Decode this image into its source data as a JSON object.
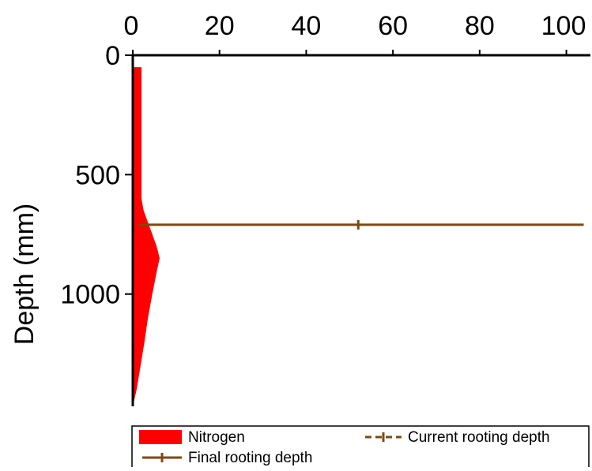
{
  "chart_data": {
    "type": "area",
    "xlabel": "",
    "ylabel": "Depth (mm)",
    "xlim": [
      0,
      105
    ],
    "ylim": [
      0,
      1470
    ],
    "x_axis_position": "top",
    "y_inverted": true,
    "grid": false,
    "x_ticks": [
      0,
      20,
      40,
      60,
      80,
      100
    ],
    "x_tick_labels": [
      "0",
      "20",
      "40",
      "60",
      "80",
      "100"
    ],
    "y_ticks": [
      0,
      500,
      1000
    ],
    "y_tick_labels": [
      "0",
      "500",
      "1000"
    ],
    "series": [
      {
        "name": "Nitrogen",
        "kind": "area",
        "color": "#ff0000",
        "depth": [
          50,
          100,
          200,
          300,
          400,
          500,
          600,
          650,
          700,
          750,
          800,
          850,
          900,
          1000,
          1100,
          1200,
          1300,
          1400,
          1470
        ],
        "value": [
          2.0,
          2.0,
          2.0,
          2.0,
          2.0,
          2.0,
          2.0,
          2.5,
          3.5,
          4.5,
          5.5,
          6.2,
          5.6,
          4.5,
          3.5,
          2.7,
          1.8,
          0.9,
          0.0
        ]
      },
      {
        "name": "Final rooting depth",
        "kind": "hline",
        "color": "#7b4a12",
        "y": 710,
        "x_range": [
          1.5,
          104
        ],
        "marker_x": 52
      },
      {
        "name": "Current rooting depth",
        "kind": "hline",
        "style": "dashed",
        "color": "#7b4a12"
      }
    ],
    "legend": {
      "placement": "bottom",
      "entries": [
        "Nitrogen",
        "Current rooting depth",
        "Final rooting depth"
      ]
    }
  }
}
